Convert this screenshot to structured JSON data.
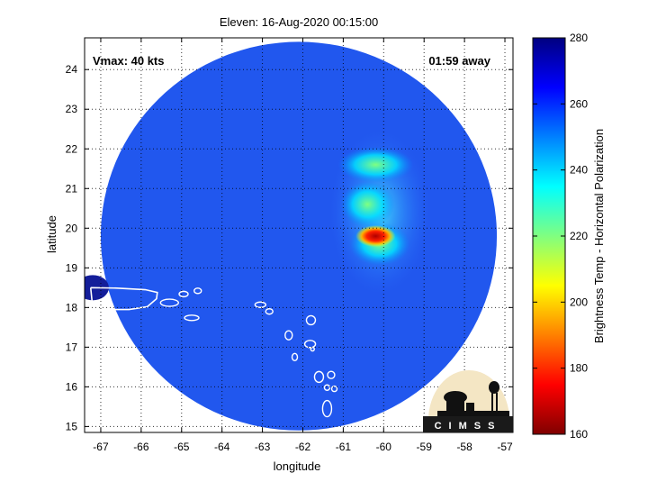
{
  "chart_data": {
    "type": "heatmap",
    "title": "Eleven: 16-Aug-2020 00:15:00",
    "xlabel": "longitude",
    "ylabel": "latitude",
    "xlim": [
      -67.4,
      -56.8
    ],
    "ylim": [
      14.85,
      24.8
    ],
    "x_ticks": [
      -67,
      -66,
      -65,
      -64,
      -63,
      -62,
      -61,
      -60,
      -59,
      -58,
      -57
    ],
    "y_ticks": [
      15,
      16,
      17,
      18,
      19,
      20,
      21,
      22,
      23,
      24
    ],
    "grid": true,
    "annotations": {
      "vmax": "Vmax: 40 kts",
      "time_away": "01:59 away"
    },
    "colorbar": {
      "label": "Brightness Temp - Horizontal Polarization",
      "min": 160,
      "max": 280,
      "ticks": [
        160,
        180,
        200,
        220,
        240,
        260,
        280
      ],
      "colormap": [
        "#800000",
        "#ff0000",
        "#ff8000",
        "#ffff00",
        "#80ff80",
        "#00ffff",
        "#0080ff",
        "#0000ff",
        "#000080"
      ]
    },
    "swath": {
      "center_lon": -62.1,
      "center_lat": 19.8,
      "radius_deg": 4.9
    },
    "features": [
      {
        "lon": -60.2,
        "lat": 19.8,
        "value": 175
      },
      {
        "lon": -60.1,
        "lat": 19.6,
        "value": 215
      },
      {
        "lon": -60.4,
        "lat": 20.6,
        "value": 238
      },
      {
        "lon": -60.2,
        "lat": 21.6,
        "value": 244
      }
    ],
    "logo_text": "CIMSS"
  }
}
